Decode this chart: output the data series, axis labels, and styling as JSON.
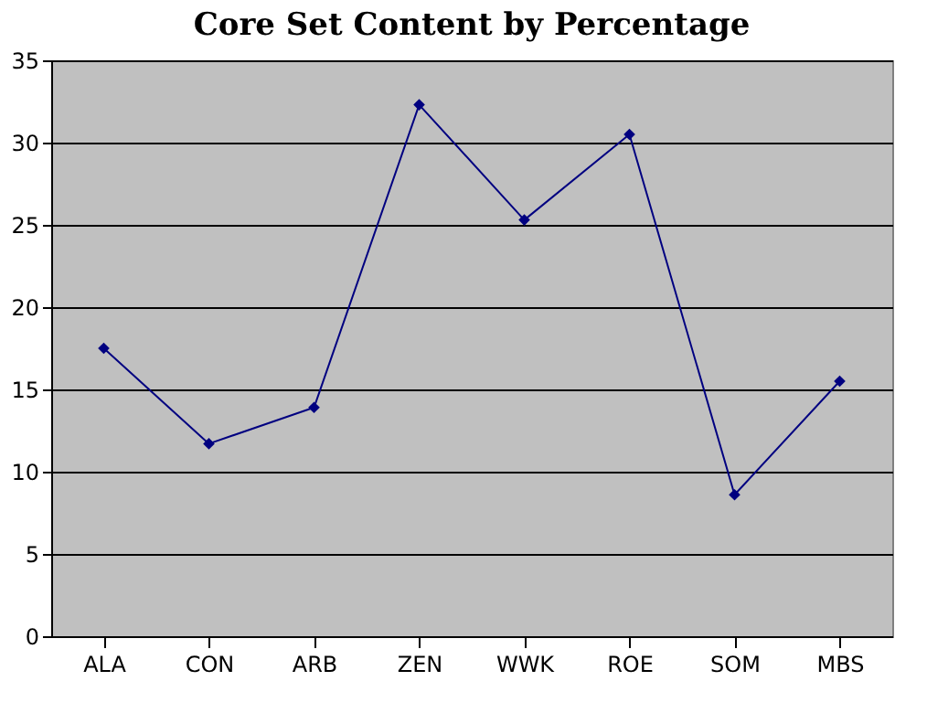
{
  "chart_data": {
    "type": "line",
    "title": "Core Set Content by Percentage",
    "categories": [
      "ALA",
      "CON",
      "ARB",
      "ZEN",
      "WWK",
      "ROE",
      "SOM",
      "MBS"
    ],
    "series": [
      {
        "color": "#000080",
        "values": [
          17.5,
          11.7,
          13.9,
          32.3,
          25.3,
          30.5,
          8.6,
          15.5
        ]
      }
    ],
    "ylim": [
      0,
      35
    ],
    "yticks": [
      0,
      5,
      10,
      15,
      20,
      25,
      30,
      35
    ],
    "grid": "y",
    "marker": "diamond",
    "line_style": "solid",
    "legend": false
  }
}
